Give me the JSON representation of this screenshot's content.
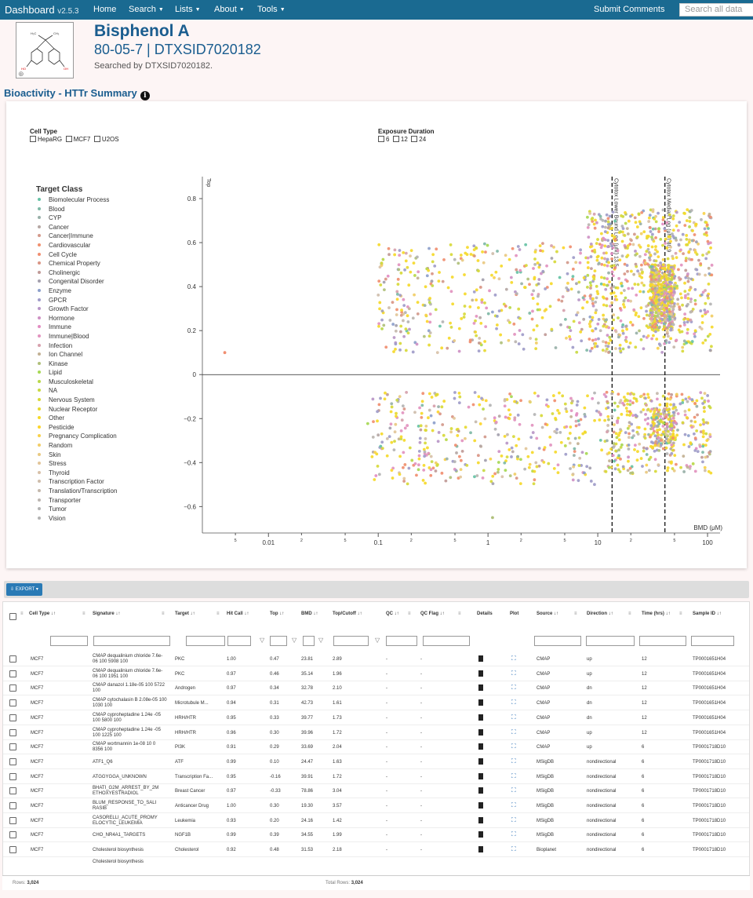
{
  "nav": {
    "brand": "Dashboard",
    "version": "v2.5.3",
    "items": [
      "Home",
      "Search",
      "Lists",
      "About",
      "Tools"
    ],
    "submit": "Submit Comments",
    "search_placeholder": "Search all data"
  },
  "chemical": {
    "name": "Bisphenol A",
    "ids": "80-05-7 | DTXSID7020182",
    "searched_by": "Searched by DTXSID7020182.",
    "structure_labels": {
      "methyl1": "H₃C",
      "methyl2": "CH₃",
      "oh1": "HO",
      "oh2": "OH"
    }
  },
  "section": {
    "title": "Bioactivity - HTTr Summary"
  },
  "filters": {
    "cell_type": {
      "label": "Cell Type",
      "options": [
        "HepaRG",
        "MCF7",
        "U2OS"
      ]
    },
    "exposure": {
      "label": "Exposure Duration",
      "options": [
        "6",
        "12",
        "24"
      ]
    }
  },
  "legend": {
    "title": "Target Class",
    "items": [
      {
        "label": "Biomolecular Process",
        "color": "#66c2a5"
      },
      {
        "label": "Blood",
        "color": "#7fb9a6"
      },
      {
        "label": "CYP",
        "color": "#98b0a8"
      },
      {
        "label": "Cancer",
        "color": "#b5a7a4"
      },
      {
        "label": "Cancer|Immune",
        "color": "#d3998b"
      },
      {
        "label": "Cardiovascular",
        "color": "#f0906e"
      },
      {
        "label": "Cell Cycle",
        "color": "#f08e70"
      },
      {
        "label": "Chemical Property",
        "color": "#d99584"
      },
      {
        "label": "Cholinergic",
        "color": "#c09a97"
      },
      {
        "label": "Congenital Disorder",
        "color": "#a39fac"
      },
      {
        "label": "Enzyme",
        "color": "#8da0cb"
      },
      {
        "label": "GPCR",
        "color": "#a09cc9"
      },
      {
        "label": "Growth Factor",
        "color": "#b896c7"
      },
      {
        "label": "Hormone",
        "color": "#ce91c4"
      },
      {
        "label": "Immune",
        "color": "#e28dc2"
      },
      {
        "label": "Immune|Blood",
        "color": "#e293bf"
      },
      {
        "label": "Infection",
        "color": "#d6a1ac"
      },
      {
        "label": "Ion Channel",
        "color": "#c2b093"
      },
      {
        "label": "Kinase",
        "color": "#b0c07b"
      },
      {
        "label": "Lipid",
        "color": "#a6d854"
      },
      {
        "label": "Musculoskeletal",
        "color": "#b9d849"
      },
      {
        "label": "NA",
        "color": "#c8d943"
      },
      {
        "label": "Nervous System",
        "color": "#d7d93a"
      },
      {
        "label": "Nuclear Receptor",
        "color": "#e6d932"
      },
      {
        "label": "Other",
        "color": "#f5d92a"
      },
      {
        "label": "Pesticide",
        "color": "#fdd52b"
      },
      {
        "label": "Pregnancy Complication",
        "color": "#f8d14a"
      },
      {
        "label": "Random",
        "color": "#f1cd66"
      },
      {
        "label": "Skin",
        "color": "#e9c981"
      },
      {
        "label": "Stress",
        "color": "#e2c599"
      },
      {
        "label": "Thyroid",
        "color": "#d8c1a8"
      },
      {
        "label": "Transcription Factor",
        "color": "#cebdab"
      },
      {
        "label": "Translation/Transcription",
        "color": "#c4b8ac"
      },
      {
        "label": "Transporter",
        "color": "#bbb5b0"
      },
      {
        "label": "Tumor",
        "color": "#b3b3b3"
      },
      {
        "label": "Vision",
        "color": "#b3b3b3"
      }
    ]
  },
  "chart_data": {
    "type": "scatter",
    "xlabel": "BMD (μM)",
    "ylabel": "Top",
    "xscale": "log",
    "xlim": [
      0.0025,
      130
    ],
    "ylim": [
      -0.72,
      0.9
    ],
    "x_ticks_major": [
      0.01,
      0.1,
      1,
      10,
      100
    ],
    "x_ticks_minor": [
      5,
      2,
      5,
      2,
      5,
      2,
      5,
      2,
      5,
      2,
      5
    ],
    "y_ticks": [
      -0.6,
      -0.4,
      -0.2,
      0,
      0.2,
      0.4,
      0.6,
      0.8
    ],
    "reference_lines": [
      {
        "label": "Cytotox Lower Bound Log (μM) 13.5",
        "x": 13.5
      },
      {
        "label": "Cytotox Median Log (μM) 40.9",
        "x": 40.9
      }
    ],
    "point_count": 3024,
    "clusters": [
      {
        "x_range": [
          0.1,
          8
        ],
        "y_range": [
          0.1,
          0.6
        ],
        "n": 380
      },
      {
        "x_range": [
          8,
          110
        ],
        "y_range": [
          0.1,
          0.75
        ],
        "n": 700
      },
      {
        "x_range": [
          30,
          50
        ],
        "y_range": [
          0.2,
          0.5
        ],
        "n": 500
      },
      {
        "x_range": [
          0.08,
          10
        ],
        "y_range": [
          -0.5,
          -0.08
        ],
        "n": 380
      },
      {
        "x_range": [
          10,
          110
        ],
        "y_range": [
          -0.45,
          -0.08
        ],
        "n": 350
      },
      {
        "x_range": [
          30,
          50
        ],
        "y_range": [
          -0.35,
          -0.15
        ],
        "n": 150
      }
    ]
  },
  "toolbar": {
    "export": "EXPORT"
  },
  "table": {
    "columns": [
      "Cell Type",
      "Signature",
      "Target",
      "Hit Call",
      "Top",
      "BMD",
      "Top/Cutoff",
      "QC",
      "QC Flag",
      "Details",
      "Plot",
      "Source",
      "Direction",
      "Time (hrs)",
      "Sample ID"
    ],
    "rows": [
      [
        "MCF7",
        "CMAP dequalinium chloride 7.6e-06 100 5908 100",
        "PKC",
        "1.00",
        "0.47",
        "23.81",
        "2.89",
        "-",
        "-",
        "",
        "",
        "CMAP",
        "up",
        "12",
        "TP0001651H04"
      ],
      [
        "MCF7",
        "CMAP dequalinium chloride 7.6e-06 100 1951 100",
        "PKC",
        "0.97",
        "0.46",
        "35.14",
        "1.96",
        "-",
        "-",
        "",
        "",
        "CMAP",
        "up",
        "12",
        "TP0001651H04"
      ],
      [
        "MCF7",
        "CMAP danazol 1.18e-05 100 5722 100",
        "Androgen",
        "0.97",
        "0.34",
        "32.78",
        "2.10",
        "-",
        "-",
        "",
        "",
        "CMAP",
        "dn",
        "12",
        "TP0001651H04"
      ],
      [
        "MCF7",
        "CMAP cytochalasin B 2.08e-05 100 1030 100",
        "Microtubule M...",
        "0.94",
        "0.31",
        "42.73",
        "1.61",
        "-",
        "-",
        "",
        "",
        "CMAP",
        "dn",
        "12",
        "TP0001651H04"
      ],
      [
        "MCF7",
        "CMAP cyproheptadine 1.24e -05 100 5800 100",
        "HRH/HTR",
        "0.95",
        "0.33",
        "39.77",
        "1.73",
        "-",
        "-",
        "",
        "",
        "CMAP",
        "dn",
        "12",
        "TP0001651H04"
      ],
      [
        "MCF7",
        "CMAP cyproheptadine 1.24e -05 100 1225 100",
        "HRH/HTR",
        "0.96",
        "0.30",
        "39.96",
        "1.72",
        "-",
        "-",
        "",
        "",
        "CMAP",
        "up",
        "12",
        "TP0001651H04"
      ],
      [
        "MCF7",
        "CMAP wortmannin 1e-08 10 0 8356 100",
        "PI3K",
        "0.91",
        "0.29",
        "33.69",
        "2.04",
        "-",
        "-",
        "",
        "",
        "CMAP",
        "up",
        "6",
        "TP0001718D10"
      ],
      [
        "MCF7",
        "ATF1_Q6",
        "ATF",
        "0.99",
        "0.10",
        "24.47",
        "1.63",
        "-",
        "-",
        "",
        "",
        "MSigDB",
        "nondirectional",
        "6",
        "TP0001718D10"
      ],
      [
        "MCF7",
        "ATGGYGGA_UNKNOWN",
        "Transcription Fa...",
        "0.95",
        "-0.16",
        "39.91",
        "1.72",
        "-",
        "-",
        "",
        "",
        "MSigDB",
        "nondirectional",
        "6",
        "TP0001718D10"
      ],
      [
        "MCF7",
        "BHATI_G2M_ARREST_BY_2M ETHOXYESTRADIOL",
        "Breast Cancer",
        "0.97",
        "-0.33",
        "78.86",
        "3.04",
        "-",
        "-",
        "",
        "",
        "MSigDB",
        "nondirectional",
        "6",
        "TP0001718D10"
      ],
      [
        "MCF7",
        "BLUM_RESPONSE_TO_SALI RASIB",
        "Anticancer Drug",
        "1.00",
        "0.30",
        "19.30",
        "3.57",
        "-",
        "-",
        "",
        "",
        "MSigDB",
        "nondirectional",
        "6",
        "TP0001718D10"
      ],
      [
        "MCF7",
        "CASORELLI_ACUTE_PROMY ELOCYTIC_LEUKEMIA",
        "Leukemia",
        "0.93",
        "0.20",
        "24.16",
        "1.42",
        "-",
        "-",
        "",
        "",
        "MSigDB",
        "nondirectional",
        "6",
        "TP0001718D10"
      ],
      [
        "MCF7",
        "CHO_NR4A1_TARGETS",
        "NGF1B",
        "0.99",
        "0.39",
        "34.55",
        "1.99",
        "-",
        "-",
        "",
        "",
        "MSigDB",
        "nondirectional",
        "6",
        "TP0001718D10"
      ],
      [
        "MCF7",
        "Cholesterol biosynthesis",
        "Cholesterol",
        "0.92",
        "0.48",
        "31.53",
        "2.18",
        "-",
        "-",
        "",
        "",
        "Bioplanet",
        "nondirectional",
        "6",
        "TP0001718D10"
      ]
    ],
    "partial_row": "Cholesterol biosynthesis"
  },
  "footer": {
    "rows_label": "Rows:",
    "rows": "3,024",
    "total_label": "Total Rows:",
    "total": "3,024"
  }
}
